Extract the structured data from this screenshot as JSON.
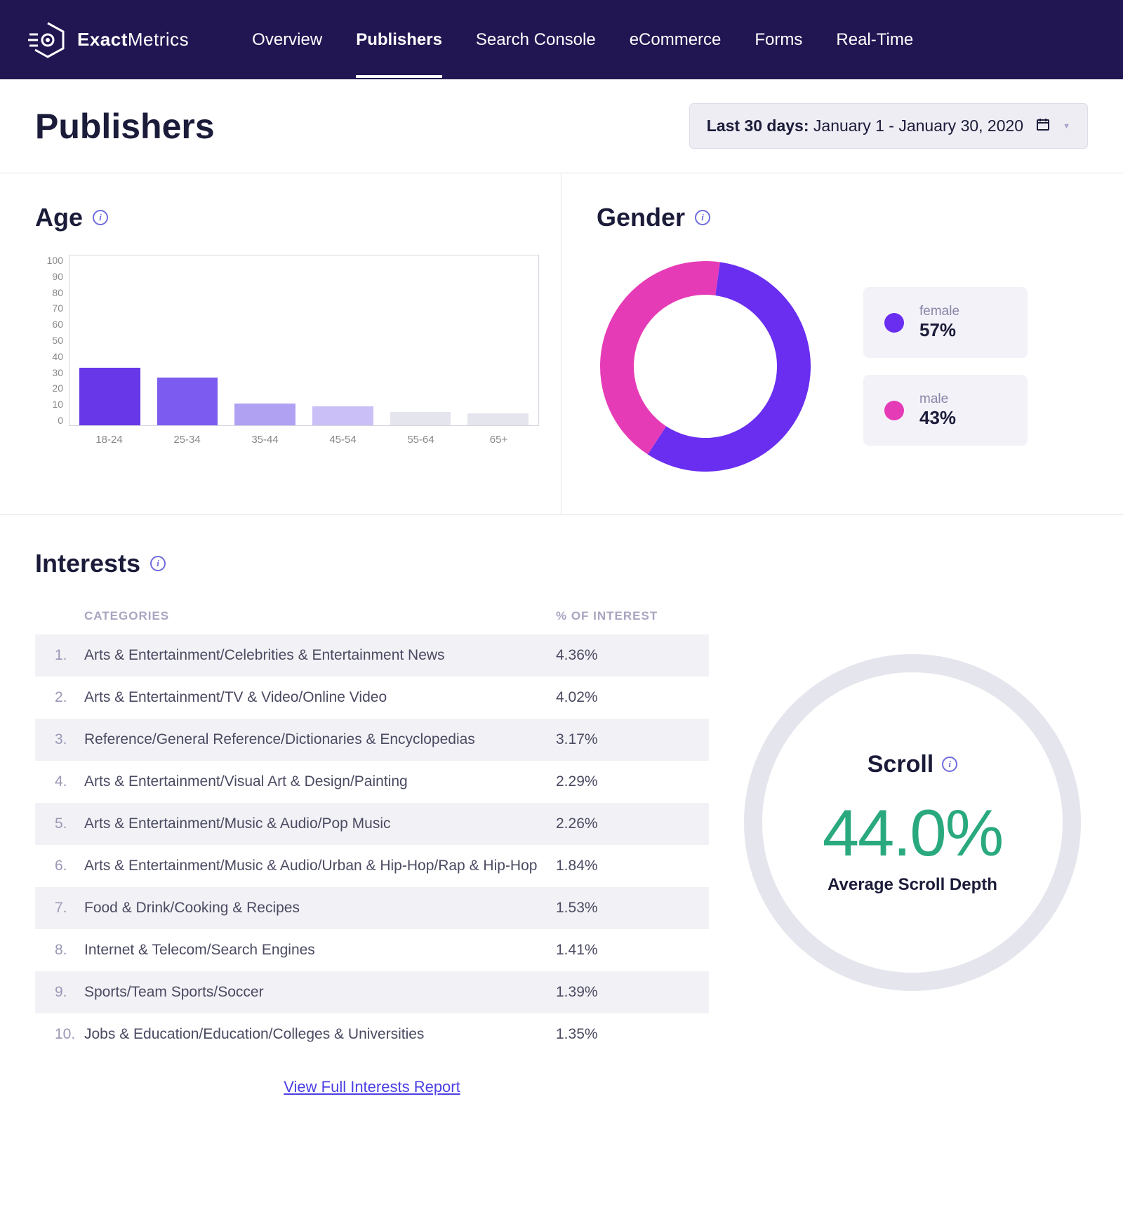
{
  "brand": {
    "left": "Exact",
    "right": "Metrics"
  },
  "nav": {
    "items": [
      {
        "label": "Overview",
        "active": false
      },
      {
        "label": "Publishers",
        "active": true
      },
      {
        "label": "Search Console",
        "active": false
      },
      {
        "label": "eCommerce",
        "active": false
      },
      {
        "label": "Forms",
        "active": false
      },
      {
        "label": "Real-Time",
        "active": false
      }
    ]
  },
  "page": {
    "title": "Publishers"
  },
  "date_picker": {
    "prefix": "Last 30 days:",
    "range": "January 1 - January 30, 2020"
  },
  "age": {
    "title": "Age",
    "ymax": 100,
    "ytick_step": 10,
    "categories": [
      "18-24",
      "25-34",
      "35-44",
      "45-54",
      "55-64",
      "65+"
    ],
    "values": [
      34,
      28,
      13,
      11,
      8,
      7
    ],
    "bar_colors": [
      "#6737e8",
      "#7b5bf0",
      "#b1a1f3",
      "#cabff6",
      "#e5e5ed",
      "#e5e5ed"
    ],
    "plot_border": "#d5d5e0"
  },
  "gender": {
    "title": "Gender",
    "donut": {
      "series": [
        {
          "label": "female",
          "value": 57,
          "color": "#6a2ef0"
        },
        {
          "label": "male",
          "value": 43,
          "color": "#e63bb7"
        }
      ],
      "inner_radius_pct": 68,
      "start_angle_deg": -82
    },
    "legend": [
      {
        "label": "female",
        "value": "57%",
        "dot_color": "#6a2ef0"
      },
      {
        "label": "male",
        "value": "43%",
        "dot_color": "#e63bb7"
      }
    ]
  },
  "interests": {
    "title": "Interests",
    "columns": {
      "categories": "CATEGORIES",
      "pct": "% OF INTEREST"
    },
    "rows": [
      {
        "num": "1.",
        "cat": "Arts & Entertainment/Celebrities & Entertainment News",
        "pct": "4.36%"
      },
      {
        "num": "2.",
        "cat": "Arts & Entertainment/TV & Video/Online Video",
        "pct": "4.02%"
      },
      {
        "num": "3.",
        "cat": "Reference/General Reference/Dictionaries & Encyclopedias",
        "pct": "3.17%"
      },
      {
        "num": "4.",
        "cat": "Arts & Entertainment/Visual Art & Design/Painting",
        "pct": "2.29%"
      },
      {
        "num": "5.",
        "cat": "Arts & Entertainment/Music & Audio/Pop Music",
        "pct": "2.26%"
      },
      {
        "num": "6.",
        "cat": "Arts & Entertainment/Music & Audio/Urban & Hip-Hop/Rap & Hip-Hop",
        "pct": "1.84%"
      },
      {
        "num": "7.",
        "cat": "Food & Drink/Cooking & Recipes",
        "pct": "1.53%"
      },
      {
        "num": "8.",
        "cat": "Internet & Telecom/Search Engines",
        "pct": "1.41%"
      },
      {
        "num": "9.",
        "cat": "Sports/Team Sports/Soccer",
        "pct": "1.39%"
      },
      {
        "num": "10.",
        "cat": "Jobs & Education/Education/Colleges & Universities",
        "pct": "1.35%"
      }
    ],
    "view_link": "View Full Interests Report"
  },
  "scroll": {
    "title": "Scroll",
    "value": "44.0%",
    "sub": "Average Scroll Depth",
    "value_color": "#2aa97f",
    "ring_color": "#e5e5ed"
  },
  "colors": {
    "header_bg": "#211652",
    "accent": "#6a2ef0",
    "secondary": "#e63bb7",
    "legend_card_bg": "#f3f2f8",
    "stripe_bg": "#f2f2f6",
    "date_bg": "#eeedf4"
  }
}
